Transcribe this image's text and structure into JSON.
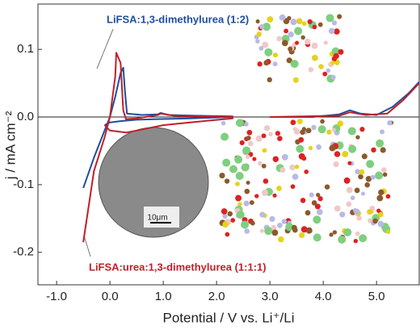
{
  "chart_data": {
    "type": "line",
    "x_label": "Potential / V vs. Li⁺/Li",
    "y_label": "j / mA cm⁻²",
    "inset_scale_label": "10μm",
    "xlim": [
      -1.35,
      5.8
    ],
    "ylim": [
      -0.248,
      0.167
    ],
    "xticks": [
      {
        "value": -1,
        "label": "-1.0"
      },
      {
        "value": 0,
        "label": "0.0"
      },
      {
        "value": 1,
        "label": "1.0"
      },
      {
        "value": 2,
        "label": "2.0"
      },
      {
        "value": 3,
        "label": "3.0"
      },
      {
        "value": 4,
        "label": "4.0"
      },
      {
        "value": 5,
        "label": "5.0"
      }
    ],
    "yticks": [
      -0.2,
      -0.1,
      {
        "value": 0,
        "label": "0.0"
      },
      0.1
    ],
    "series": [
      {
        "name": "LiFSA:1,3-dimethylurea (1:2)",
        "color": "#1f4e9c",
        "x": [
          -0.5,
          -0.3,
          -0.1,
          0.0,
          0.1,
          0.2,
          0.25,
          0.28,
          0.32,
          0.6,
          0.9,
          0.95,
          1.1,
          1.6,
          2.3,
          2.3,
          1.5,
          0.9,
          0.5,
          0.2,
          0.0,
          -0.1,
          null,
          3.0,
          3.8,
          4.3,
          4.5,
          4.7,
          5.0,
          5.3,
          5.6,
          5.8
        ],
        "values": [
          -0.105,
          -0.06,
          -0.02,
          0.0,
          0.03,
          0.065,
          0.073,
          0.04,
          0.005,
          0.003,
          0.004,
          0.006,
          0.003,
          0.002,
          0.001,
          0.0,
          -0.002,
          -0.003,
          -0.004,
          -0.006,
          -0.008,
          -0.012,
          null,
          0.0,
          0.0,
          0.004,
          0.01,
          0.005,
          0.003,
          0.015,
          0.035,
          0.052
        ]
      },
      {
        "name": "LiFSA:urea:1,3-dimethylurea (1:1:1)",
        "color": "#c0202a",
        "x": [
          -0.5,
          -0.3,
          -0.1,
          0.0,
          0.1,
          0.12,
          0.2,
          0.25,
          0.3,
          0.5,
          0.9,
          0.95,
          1.2,
          2.3,
          2.3,
          1.5,
          1.0,
          0.5,
          0.3,
          0.0,
          -0.1,
          null,
          3.0,
          4.3,
          4.5,
          4.8,
          5.2,
          5.5,
          5.8
        ],
        "values": [
          -0.185,
          -0.08,
          -0.03,
          0.0,
          0.06,
          0.095,
          0.08,
          0.01,
          -0.003,
          -0.002,
          0.003,
          0.005,
          0.002,
          0.0,
          -0.002,
          -0.008,
          -0.012,
          -0.02,
          -0.023,
          -0.02,
          -0.012,
          null,
          0.0,
          0.002,
          0.007,
          0.003,
          0.005,
          0.025,
          0.05
        ]
      }
    ]
  }
}
